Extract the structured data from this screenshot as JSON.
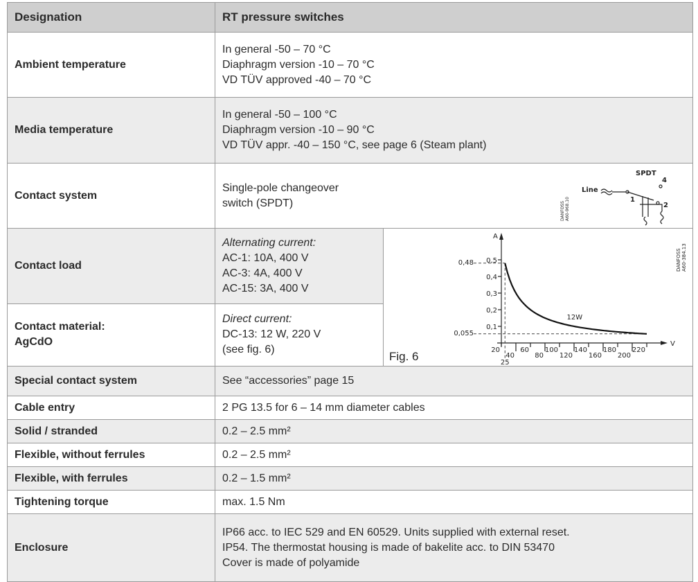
{
  "header": [
    "Designation",
    "RT pressure switches"
  ],
  "rows": [
    {
      "label": "Ambient temperature",
      "lines": [
        "In general -50 – 70 °C",
        "Diaphragm version -10 – 70 °C",
        "VD TÜV approved -40 – 70 °C"
      ]
    },
    {
      "label": "Media temperature",
      "lines": [
        "In general -50 – 100 °C",
        "Diaphragm version -10 – 90 °C",
        "VD TÜV appr. -40 – 150 °C, see page 6 (Steam plant)"
      ]
    },
    {
      "label": "Contact system",
      "lines": [
        "Single-pole changeover",
        "switch (SPDT)"
      ]
    },
    {
      "label": "Contact load",
      "heading": "Alternating current:",
      "lines": [
        "AC-1: 10A, 400 V",
        "AC-3: 4A, 400 V",
        "AC-15: 3A, 400 V"
      ]
    },
    {
      "label": [
        "Contact material:",
        "AgCdO"
      ],
      "heading": "Direct current:",
      "lines": [
        "DC-13: 12 W, 220 V",
        "(see fig. 6)"
      ]
    },
    {
      "label": "Special contact system",
      "lines": [
        "See “accessories” page 15"
      ]
    },
    {
      "label": "Cable entry",
      "lines": [
        "2 PG 13.5 for 6 – 14 mm diameter cables"
      ]
    },
    {
      "label": "Solid / stranded",
      "lines": [
        "0.2 – 2.5 mm²"
      ]
    },
    {
      "label": "Flexible, without ferrules",
      "lines": [
        "0.2 – 2.5 mm²"
      ]
    },
    {
      "label": "Flexible, with ferrules",
      "lines": [
        "0.2 – 1.5 mm²"
      ]
    },
    {
      "label": "Tightening torque",
      "lines": [
        "max. 1.5 Nm"
      ]
    },
    {
      "label": "Enclosure",
      "lines": [
        "IP66 acc. to IEC 529 and EN 60529. Units supplied with external reset.",
        "IP54. The thermostat housing is made of bakelite acc. to DIN 53470",
        "Cover is made of polyamide"
      ]
    }
  ],
  "spdt_diagram": {
    "title": "SPDT",
    "line": "Line",
    "terminals": [
      "1",
      "2",
      "4"
    ],
    "code": [
      "DANFOSS",
      "A60-968.10"
    ]
  },
  "fig6": {
    "caption": "Fig. 6",
    "code": [
      "DANFOSS",
      "A60-384.13"
    ],
    "ylabel": "A",
    "xlabel": "V",
    "yticks": [
      {
        "value": 0.1,
        "label": "0,1"
      },
      {
        "value": 0.2,
        "label": "0,2"
      },
      {
        "value": 0.3,
        "label": "0,3"
      },
      {
        "value": 0.4,
        "label": "0,4"
      },
      {
        "value": 0.5,
        "label": "0,5"
      }
    ],
    "xticks": [
      20,
      40,
      60,
      80,
      100,
      120,
      140,
      160,
      180,
      200,
      220
    ],
    "marker_x": 25,
    "marker_y": {
      "value": 0.48,
      "label": "0,48"
    },
    "floor_y": {
      "value": 0.055,
      "label": "0,055"
    },
    "curve_label": "12W"
  }
}
